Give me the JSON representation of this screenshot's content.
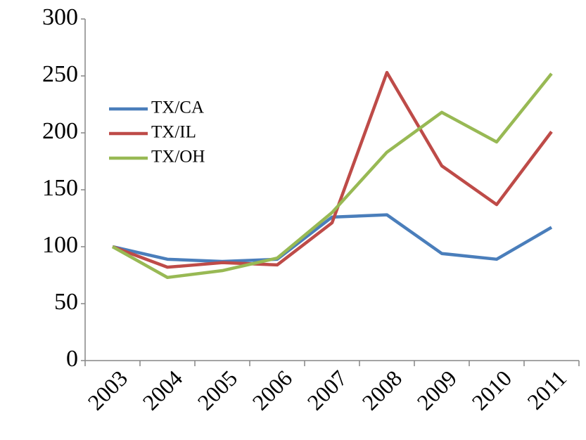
{
  "chart_data": {
    "type": "line",
    "categories": [
      "2003",
      "2004",
      "2005",
      "2006",
      "2007",
      "2008",
      "2009",
      "2010",
      "2011"
    ],
    "series": [
      {
        "name": "TX/CA",
        "color": "#4a7ebb",
        "values": [
          100,
          89,
          87,
          89,
          126,
          128,
          94,
          89,
          117
        ]
      },
      {
        "name": "TX/IL",
        "color": "#be4b48",
        "values": [
          100,
          82,
          86,
          84,
          121,
          253,
          171,
          137,
          201
        ]
      },
      {
        "name": "TX/OH",
        "color": "#98b954",
        "values": [
          100,
          73,
          79,
          90,
          130,
          183,
          218,
          192,
          252
        ]
      }
    ],
    "ylim": [
      0,
      300
    ],
    "yticks": [
      0,
      50,
      100,
      150,
      200,
      250,
      300
    ],
    "grid": false,
    "legend": "upper left"
  }
}
